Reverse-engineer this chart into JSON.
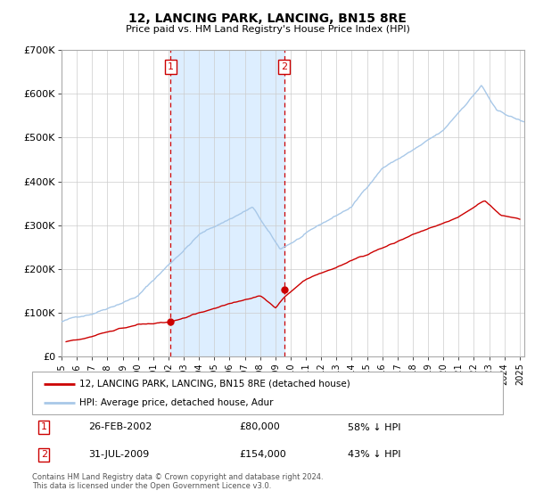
{
  "title": "12, LANCING PARK, LANCING, BN15 8RE",
  "subtitle": "Price paid vs. HM Land Registry's House Price Index (HPI)",
  "ylim": [
    0,
    700000
  ],
  "xlim_start": 1995.0,
  "xlim_end": 2025.3,
  "background_color": "#ffffff",
  "plot_bg_color": "#ffffff",
  "grid_color": "#cccccc",
  "hpi_color": "#a8c8e8",
  "price_color": "#cc0000",
  "shade_color": "#ddeeff",
  "transaction1_date": 2002.146,
  "transaction1_price": 80000,
  "transaction1_label": "1",
  "transaction2_date": 2009.58,
  "transaction2_price": 154000,
  "transaction2_label": "2",
  "legend_labels": [
    "12, LANCING PARK, LANCING, BN15 8RE (detached house)",
    "HPI: Average price, detached house, Adur"
  ],
  "table_row1": [
    "1",
    "26-FEB-2002",
    "£80,000",
    "58% ↓ HPI"
  ],
  "table_row2": [
    "2",
    "31-JUL-2009",
    "£154,000",
    "43% ↓ HPI"
  ],
  "footnote1": "Contains HM Land Registry data © Crown copyright and database right 2024.",
  "footnote2": "This data is licensed under the Open Government Licence v3.0.",
  "yticks": [
    0,
    100000,
    200000,
    300000,
    400000,
    500000,
    600000,
    700000
  ],
  "ytick_labels": [
    "£0",
    "£100K",
    "£200K",
    "£300K",
    "£400K",
    "£500K",
    "£600K",
    "£700K"
  ],
  "xticks": [
    1995,
    1996,
    1997,
    1998,
    1999,
    2000,
    2001,
    2002,
    2003,
    2004,
    2005,
    2006,
    2007,
    2008,
    2009,
    2010,
    2011,
    2012,
    2013,
    2014,
    2015,
    2016,
    2017,
    2018,
    2019,
    2020,
    2021,
    2022,
    2023,
    2024,
    2025
  ]
}
